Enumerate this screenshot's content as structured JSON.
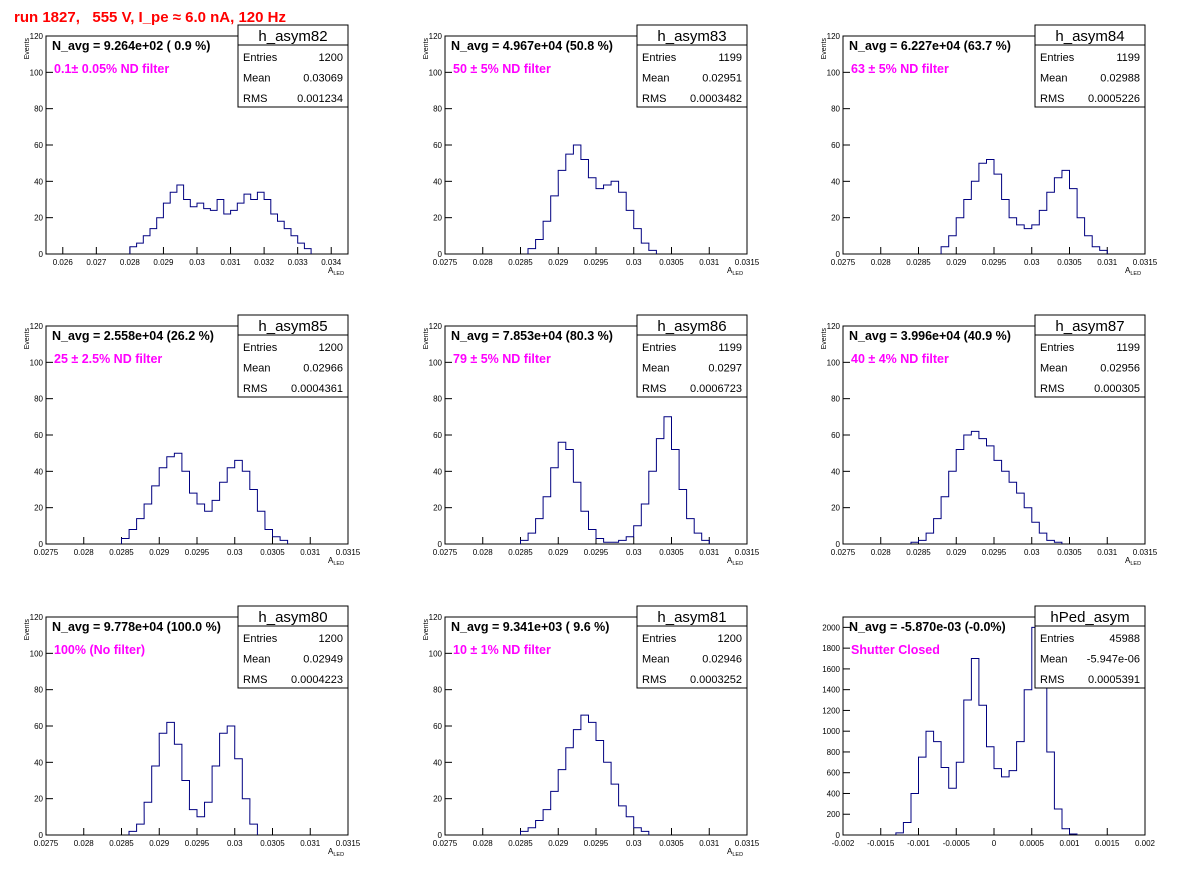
{
  "title": "run 1827,   555 V, I_pe ≈ 6.0 nA, 120 Hz",
  "colors": {
    "title": "#ff0000",
    "navg": "#000000",
    "label": "#ff00ff",
    "hist": "#000080"
  },
  "stats_labels": {
    "entries": "Entries",
    "mean": "Mean",
    "rms": "RMS"
  },
  "chart_data": [
    {
      "type": "bar",
      "name": "h_asym82",
      "navg": "N_avg = 9.264e+02 ( 0.9 %)",
      "label": "0.1± 0.05% ND filter",
      "entries": "1200",
      "mean": "0.03069",
      "rms": "0.001234",
      "ylabel": "Events",
      "xlabel": "A_LED",
      "xlim": [
        0.0255,
        0.0345
      ],
      "ylim": [
        0,
        120
      ],
      "xticks": [
        "0.026",
        "0.027",
        "0.028",
        "0.029",
        "0.03",
        "0.031",
        "0.032",
        "0.033",
        "0.034"
      ],
      "xtick_values": [
        0.026,
        0.027,
        0.028,
        0.029,
        0.03,
        0.031,
        0.032,
        0.033,
        0.034
      ],
      "yticks": [
        0,
        20,
        40,
        60,
        80,
        100,
        120
      ],
      "x": [
        0.0281,
        0.0283,
        0.0285,
        0.0287,
        0.0289,
        0.0291,
        0.0293,
        0.0295,
        0.0297,
        0.0299,
        0.0301,
        0.0303,
        0.0305,
        0.0307,
        0.0309,
        0.0311,
        0.0313,
        0.0315,
        0.0317,
        0.0319,
        0.0321,
        0.0323,
        0.0325,
        0.0327,
        0.0329,
        0.0331,
        0.0333
      ],
      "values": [
        4,
        6,
        10,
        14,
        20,
        28,
        34,
        38,
        30,
        26,
        28,
        25,
        24,
        30,
        22,
        24,
        28,
        33,
        30,
        34,
        30,
        22,
        18,
        14,
        10,
        6,
        3
      ]
    },
    {
      "type": "bar",
      "name": "h_asym83",
      "navg": "N_avg = 4.967e+04 (50.8 %)",
      "label": "50 ± 5% ND filter",
      "entries": "1199",
      "mean": "0.02951",
      "rms": "0.0003482",
      "ylabel": "Events",
      "xlabel": "A_LED",
      "xlim": [
        0.0275,
        0.0315
      ],
      "ylim": [
        0,
        120
      ],
      "xticks": [
        "0.0275",
        "0.028",
        "0.0285",
        "0.029",
        "0.0295",
        "0.03",
        "0.0305",
        "0.031",
        "0.0315"
      ],
      "xtick_values": [
        0.0275,
        0.028,
        0.0285,
        0.029,
        0.0295,
        0.03,
        0.0305,
        0.031,
        0.0315
      ],
      "yticks": [
        0,
        20,
        40,
        60,
        80,
        100,
        120
      ],
      "x": [
        0.02865,
        0.02875,
        0.02885,
        0.02895,
        0.02905,
        0.02915,
        0.02925,
        0.02935,
        0.02945,
        0.02955,
        0.02965,
        0.02975,
        0.02985,
        0.02995,
        0.03005,
        0.03015,
        0.03025
      ],
      "values": [
        3,
        8,
        18,
        32,
        46,
        55,
        60,
        52,
        42,
        36,
        38,
        40,
        34,
        24,
        14,
        6,
        2
      ]
    },
    {
      "type": "bar",
      "name": "h_asym84",
      "navg": "N_avg = 6.227e+04 (63.7 %)",
      "label": "63 ± 5% ND filter",
      "entries": "1199",
      "mean": "0.02988",
      "rms": "0.0005226",
      "ylabel": "Events",
      "xlabel": "A_LED",
      "xlim": [
        0.0275,
        0.0315
      ],
      "ylim": [
        0,
        120
      ],
      "xticks": [
        "0.0275",
        "0.028",
        "0.0285",
        "0.029",
        "0.0295",
        "0.03",
        "0.0305",
        "0.031",
        "0.0315"
      ],
      "xtick_values": [
        0.0275,
        0.028,
        0.0285,
        0.029,
        0.0295,
        0.03,
        0.0305,
        0.031,
        0.0315
      ],
      "yticks": [
        0,
        20,
        40,
        60,
        80,
        100,
        120
      ],
      "x": [
        0.02885,
        0.02895,
        0.02905,
        0.02915,
        0.02925,
        0.02935,
        0.02945,
        0.02955,
        0.02965,
        0.02975,
        0.02985,
        0.02995,
        0.03005,
        0.03015,
        0.03025,
        0.03035,
        0.03045,
        0.03055,
        0.03065,
        0.03075,
        0.03085,
        0.03095
      ],
      "values": [
        4,
        10,
        20,
        30,
        40,
        50,
        52,
        44,
        30,
        20,
        16,
        14,
        16,
        24,
        34,
        42,
        46,
        36,
        20,
        10,
        4,
        2
      ]
    },
    {
      "type": "bar",
      "name": "h_asym85",
      "navg": "N_avg = 2.558e+04 (26.2 %)",
      "label": "25 ± 2.5% ND filter",
      "entries": "1200",
      "mean": "0.02966",
      "rms": "0.0004361",
      "ylabel": "Events",
      "xlabel": "A_LED",
      "xlim": [
        0.0275,
        0.0315
      ],
      "ylim": [
        0,
        120
      ],
      "xticks": [
        "0.0275",
        "0.028",
        "0.0285",
        "0.029",
        "0.0295",
        "0.03",
        "0.0305",
        "0.031",
        "0.0315"
      ],
      "xtick_values": [
        0.0275,
        0.028,
        0.0285,
        0.029,
        0.0295,
        0.03,
        0.0305,
        0.031,
        0.0315
      ],
      "yticks": [
        0,
        20,
        40,
        60,
        80,
        100,
        120
      ],
      "x": [
        0.02855,
        0.02865,
        0.02875,
        0.02885,
        0.02895,
        0.02905,
        0.02915,
        0.02925,
        0.02935,
        0.02945,
        0.02955,
        0.02965,
        0.02975,
        0.02985,
        0.02995,
        0.03005,
        0.03015,
        0.03025,
        0.03035,
        0.03045,
        0.03055,
        0.03065
      ],
      "values": [
        3,
        8,
        14,
        22,
        32,
        42,
        48,
        50,
        40,
        28,
        22,
        18,
        24,
        34,
        42,
        46,
        40,
        30,
        18,
        8,
        4,
        2
      ]
    },
    {
      "type": "bar",
      "name": "h_asym86",
      "navg": "N_avg = 7.853e+04 (80.3 %)",
      "label": "79 ± 5% ND filter",
      "entries": "1199",
      "mean": "0.0297",
      "rms": "0.0006723",
      "ylabel": "Events",
      "xlabel": "A_LED",
      "xlim": [
        0.0275,
        0.0315
      ],
      "ylim": [
        0,
        120
      ],
      "xticks": [
        "0.0275",
        "0.028",
        "0.0285",
        "0.029",
        "0.0295",
        "0.03",
        "0.0305",
        "0.031",
        "0.0315"
      ],
      "xtick_values": [
        0.0275,
        0.028,
        0.0285,
        0.029,
        0.0295,
        0.03,
        0.0305,
        0.031,
        0.0315
      ],
      "yticks": [
        0,
        20,
        40,
        60,
        80,
        100,
        120
      ],
      "x": [
        0.02855,
        0.02865,
        0.02875,
        0.02885,
        0.02895,
        0.02905,
        0.02915,
        0.02925,
        0.02935,
        0.02945,
        0.02955,
        0.02965,
        0.02975,
        0.02985,
        0.02995,
        0.03005,
        0.03015,
        0.03025,
        0.03035,
        0.03045,
        0.03055,
        0.03065,
        0.03075,
        0.03085,
        0.03095
      ],
      "values": [
        2,
        6,
        14,
        26,
        42,
        56,
        52,
        34,
        18,
        8,
        3,
        1,
        1,
        2,
        4,
        10,
        22,
        40,
        58,
        70,
        52,
        30,
        14,
        6,
        2
      ]
    },
    {
      "type": "bar",
      "name": "h_asym87",
      "navg": "N_avg = 3.996e+04 (40.9 %)",
      "label": "40 ± 4% ND filter",
      "entries": "1199",
      "mean": "0.02956",
      "rms": "0.000305",
      "ylabel": "Events",
      "xlabel": "A_LED",
      "xlim": [
        0.0275,
        0.0315
      ],
      "ylim": [
        0,
        120
      ],
      "xticks": [
        "0.0275",
        "0.028",
        "0.0285",
        "0.029",
        "0.0295",
        "0.03",
        "0.0305",
        "0.031",
        "0.0315"
      ],
      "xtick_values": [
        0.0275,
        0.028,
        0.0285,
        0.029,
        0.0295,
        0.03,
        0.0305,
        0.031,
        0.0315
      ],
      "yticks": [
        0,
        20,
        40,
        60,
        80,
        100,
        120
      ],
      "x": [
        0.02845,
        0.02855,
        0.02865,
        0.02875,
        0.02885,
        0.02895,
        0.02905,
        0.02915,
        0.02925,
        0.02935,
        0.02945,
        0.02955,
        0.02965,
        0.02975,
        0.02985,
        0.02995,
        0.03005,
        0.03015,
        0.03025,
        0.03035
      ],
      "values": [
        1,
        2,
        6,
        14,
        26,
        40,
        52,
        60,
        62,
        58,
        54,
        46,
        40,
        34,
        28,
        20,
        12,
        6,
        2,
        1
      ]
    },
    {
      "type": "bar",
      "name": "h_asym80",
      "navg": "N_avg = 9.778e+04 (100.0 %)",
      "label": "100% (No filter)",
      "entries": "1200",
      "mean": "0.02949",
      "rms": "0.0004223",
      "ylabel": "Events",
      "xlabel": "A_LED",
      "xlim": [
        0.0275,
        0.0315
      ],
      "ylim": [
        0,
        120
      ],
      "xticks": [
        "0.0275",
        "0.028",
        "0.0285",
        "0.029",
        "0.0295",
        "0.03",
        "0.0305",
        "0.031",
        "0.0315"
      ],
      "xtick_values": [
        0.0275,
        0.028,
        0.0285,
        0.029,
        0.0295,
        0.03,
        0.0305,
        0.031,
        0.0315
      ],
      "yticks": [
        0,
        20,
        40,
        60,
        80,
        100,
        120
      ],
      "x": [
        0.02865,
        0.02875,
        0.02885,
        0.02895,
        0.02905,
        0.02915,
        0.02925,
        0.02935,
        0.02945,
        0.02955,
        0.02965,
        0.02975,
        0.02985,
        0.02995,
        0.03005,
        0.03015,
        0.03025
      ],
      "values": [
        2,
        6,
        18,
        38,
        56,
        62,
        50,
        30,
        14,
        10,
        18,
        38,
        56,
        60,
        42,
        20,
        6
      ]
    },
    {
      "type": "bar",
      "name": "h_asym81",
      "navg": "N_avg = 9.341e+03 ( 9.6 %)",
      "label": "10 ± 1% ND filter",
      "entries": "1200",
      "mean": "0.02946",
      "rms": "0.0003252",
      "ylabel": "Events",
      "xlabel": "A_LED",
      "xlim": [
        0.0275,
        0.0315
      ],
      "ylim": [
        0,
        120
      ],
      "xticks": [
        "0.0275",
        "0.028",
        "0.0285",
        "0.029",
        "0.0295",
        "0.03",
        "0.0305",
        "0.031",
        "0.0315"
      ],
      "xtick_values": [
        0.0275,
        0.028,
        0.0285,
        0.029,
        0.0295,
        0.03,
        0.0305,
        0.031,
        0.0315
      ],
      "yticks": [
        0,
        20,
        40,
        60,
        80,
        100,
        120
      ],
      "x": [
        0.02855,
        0.02865,
        0.02875,
        0.02885,
        0.02895,
        0.02905,
        0.02915,
        0.02925,
        0.02935,
        0.02945,
        0.02955,
        0.02965,
        0.02975,
        0.02985,
        0.02995,
        0.03005,
        0.03015
      ],
      "values": [
        2,
        4,
        8,
        14,
        24,
        36,
        48,
        58,
        66,
        62,
        52,
        40,
        28,
        16,
        10,
        4,
        2
      ]
    },
    {
      "type": "bar",
      "name": "hPed_asym",
      "navg": "N_avg = -5.870e-03 (-0.0%)",
      "label": "Shutter Closed",
      "entries": "45988",
      "mean": "-5.947e-06",
      "rms": "0.0005391",
      "ylabel": "",
      "xlabel": "",
      "xlim": [
        -0.002,
        0.002
      ],
      "ylim": [
        0,
        2100
      ],
      "xticks": [
        "-0.002",
        "-0.0015",
        "-0.001",
        "-0.0005",
        "0",
        "0.0005",
        "0.001",
        "0.0015",
        "0.002"
      ],
      "xtick_values": [
        -0.002,
        -0.0015,
        -0.001,
        -0.0005,
        0,
        0.0005,
        0.001,
        0.0015,
        0.002
      ],
      "yticks": [
        0,
        200,
        400,
        600,
        800,
        1000,
        1200,
        1400,
        1600,
        1800,
        2000
      ],
      "x": [
        -0.00125,
        -0.00115,
        -0.00105,
        -0.00095,
        -0.00085,
        -0.00075,
        -0.00065,
        -0.00055,
        -0.00045,
        -0.00035,
        -0.00025,
        -0.00015,
        -5e-05,
        5e-05,
        0.00015,
        0.00025,
        0.00035,
        0.00045,
        0.00055,
        0.00065,
        0.00075,
        0.00085,
        0.00095,
        0.00105
      ],
      "values": [
        20,
        120,
        400,
        750,
        1000,
        900,
        650,
        450,
        700,
        1300,
        1700,
        1250,
        850,
        640,
        560,
        620,
        900,
        1400,
        2000,
        1650,
        800,
        250,
        60,
        10
      ]
    }
  ]
}
